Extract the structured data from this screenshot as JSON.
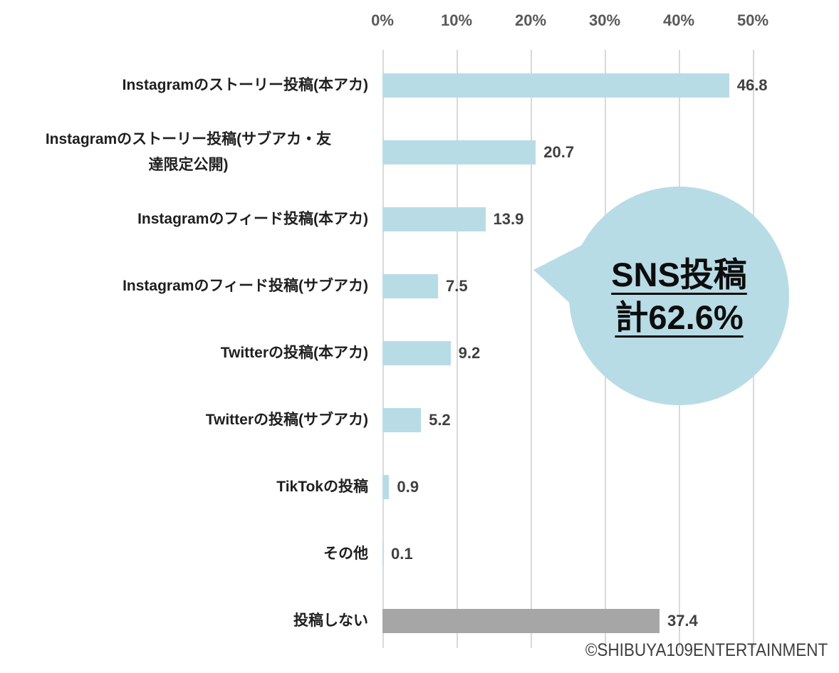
{
  "chart_data": {
    "type": "bar",
    "orientation": "horizontal",
    "title": "",
    "xlabel": "",
    "ylabel": "",
    "axis_ticks": [
      "0%",
      "10%",
      "20%",
      "30%",
      "40%",
      "50%"
    ],
    "axis_tick_values": [
      0,
      10,
      20,
      30,
      40,
      50
    ],
    "xlim": [
      0,
      61.5
    ],
    "grid": true,
    "categories": [
      "Instagramのストーリー投稿(本アカ)",
      "Instagramのストーリー投稿(サブアカ・友達限定公開)",
      "Instagramのフィード投稿(本アカ)",
      "Instagramのフィード投稿(サブアカ)",
      "Twitterの投稿(本アカ)",
      "Twitterの投稿(サブアカ)",
      "TikTokの投稿",
      "その他",
      "投稿しない"
    ],
    "values": [
      46.8,
      20.7,
      13.9,
      7.5,
      9.2,
      5.2,
      0.9,
      0.1,
      37.4
    ]
  },
  "rows": [
    {
      "label_lines": [
        "Instagramのストーリー投稿(本アカ)"
      ],
      "value": "46.8",
      "color_key": "bar_blue"
    },
    {
      "label_lines": [
        "Instagramのストーリー投稿(サブアカ・友",
        "達限定公開)"
      ],
      "value": "20.7",
      "color_key": "bar_blue"
    },
    {
      "label_lines": [
        "Instagramのフィード投稿(本アカ)"
      ],
      "value": "13.9",
      "color_key": "bar_blue"
    },
    {
      "label_lines": [
        "Instagramのフィード投稿(サブアカ)"
      ],
      "value": "7.5",
      "color_key": "bar_blue"
    },
    {
      "label_lines": [
        "Twitterの投稿(本アカ)"
      ],
      "value": "9.2",
      "color_key": "bar_blue"
    },
    {
      "label_lines": [
        "Twitterの投稿(サブアカ)"
      ],
      "value": "5.2",
      "color_key": "bar_blue"
    },
    {
      "label_lines": [
        "TikTokの投稿"
      ],
      "value": "0.9",
      "color_key": "bar_blue"
    },
    {
      "label_lines": [
        "その他"
      ],
      "value": "0.1",
      "color_key": "bar_blue"
    },
    {
      "label_lines": [
        "投稿しない"
      ],
      "value": "37.4",
      "color_key": "bar_gray"
    }
  ],
  "callout": {
    "line1": "SNS投稿",
    "line2": "計62.6%"
  },
  "copyright": "©SHIBUYA109ENTERTAINMENT",
  "colors": {
    "bar_blue": "#b8dce6",
    "bar_gray": "#a6a6a6",
    "bubble": "#b8dce6",
    "gridline": "#d9d9d9",
    "tick_text": "#595959",
    "value_text": "#404040",
    "category_text": "#1f1f1f"
  }
}
